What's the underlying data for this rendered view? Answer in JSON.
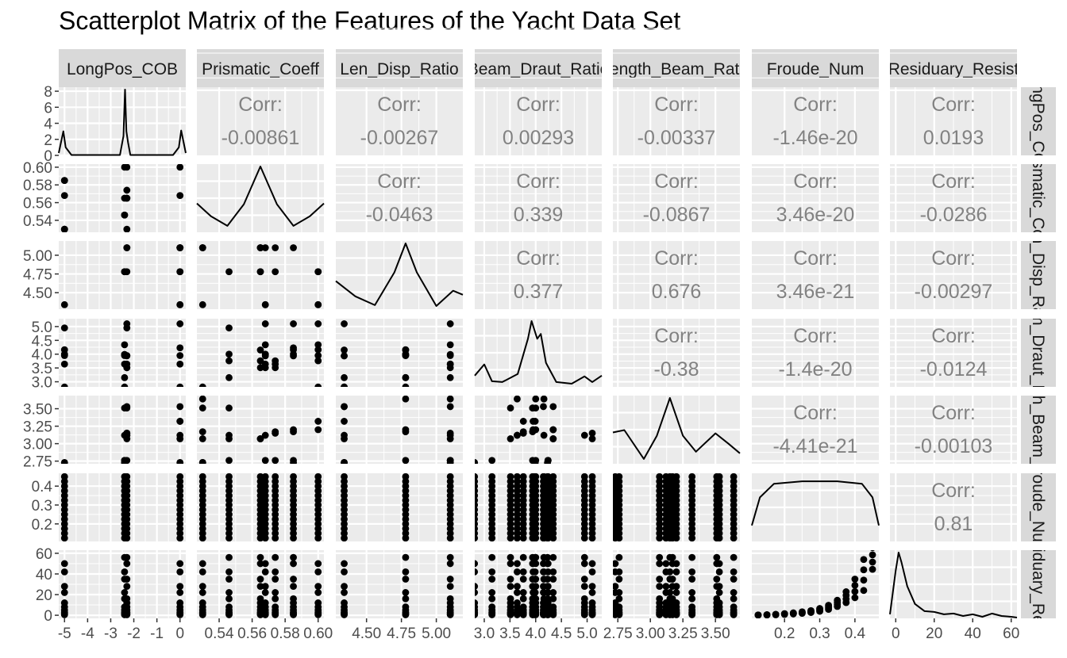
{
  "chart_data": {
    "type": "scatter",
    "title": "Scatterplot Matrix of the Features of the Yacht Data Set",
    "variables": [
      "LongPos_COB",
      "Prismatic_Coeff",
      "Len_Disp_Ratio",
      "Beam_Draut_Ratio",
      "Length_Beam_Ratio",
      "Froude_Num",
      "Residuary_Resist"
    ],
    "column_strip_labels": [
      "LongPos_COB",
      "Prismatic_Coeff",
      "Len_Disp_Ratio",
      "Beam_Draut_Ratio",
      "Length_Beam_Ratio",
      "Froude_Num",
      "Residuary_Resist"
    ],
    "row_strip_labels": [
      "LongPos_COB",
      "Prismatic_Coeff",
      "Len_Disp_Ratio",
      "Beam_Draut_Ratio",
      "Length_Beam_Ratio",
      "Froude_Num",
      "Residuary_Resist"
    ],
    "corr_label": "Corr:",
    "correlations": [
      {
        "row": 0,
        "col": 1,
        "text": "-0.00861"
      },
      {
        "row": 0,
        "col": 2,
        "text": "-0.00267"
      },
      {
        "row": 0,
        "col": 3,
        "text": "0.00293"
      },
      {
        "row": 0,
        "col": 4,
        "text": "-0.00337"
      },
      {
        "row": 0,
        "col": 5,
        "text": "-1.46e-20"
      },
      {
        "row": 0,
        "col": 6,
        "text": "0.0193"
      },
      {
        "row": 1,
        "col": 2,
        "text": "-0.0463"
      },
      {
        "row": 1,
        "col": 3,
        "text": "0.339"
      },
      {
        "row": 1,
        "col": 4,
        "text": "-0.0867"
      },
      {
        "row": 1,
        "col": 5,
        "text": "3.46e-20"
      },
      {
        "row": 1,
        "col": 6,
        "text": "-0.0286"
      },
      {
        "row": 2,
        "col": 3,
        "text": "0.377"
      },
      {
        "row": 2,
        "col": 4,
        "text": "0.676"
      },
      {
        "row": 2,
        "col": 5,
        "text": "3.46e-21"
      },
      {
        "row": 2,
        "col": 6,
        "text": "-0.00297"
      },
      {
        "row": 3,
        "col": 4,
        "text": "-0.38"
      },
      {
        "row": 3,
        "col": 5,
        "text": "-1.4e-20"
      },
      {
        "row": 3,
        "col": 6,
        "text": "-0.0124"
      },
      {
        "row": 4,
        "col": 5,
        "text": "-4.41e-21"
      },
      {
        "row": 4,
        "col": 6,
        "text": "-0.00103"
      },
      {
        "row": 5,
        "col": 6,
        "text": "0.81"
      }
    ],
    "x_ticks": [
      {
        "values": [
          -5,
          -4,
          -3,
          -2,
          -1,
          0
        ],
        "labels": [
          "-5",
          "-4",
          "-3",
          "-2",
          "-1",
          "0"
        ]
      },
      {
        "values": [
          0.54,
          0.56,
          0.58,
          0.6
        ],
        "labels": [
          "0.54",
          "0.56",
          "0.58",
          "0.60"
        ]
      },
      {
        "values": [
          4.5,
          4.75,
          5.0
        ],
        "labels": [
          "4.50",
          "4.75",
          "5.00"
        ]
      },
      {
        "values": [
          3.0,
          3.5,
          4.0,
          4.5,
          5.0
        ],
        "labels": [
          "3.0",
          "3.5",
          "4.0",
          "4.5",
          "5.0"
        ]
      },
      {
        "values": [
          2.75,
          3.0,
          3.25,
          3.5
        ],
        "labels": [
          "2.75",
          "3.00",
          "3.25",
          "3.50"
        ]
      },
      {
        "values": [
          0.2,
          0.3,
          0.4
        ],
        "labels": [
          "0.2",
          "0.3",
          "0.4"
        ]
      },
      {
        "values": [
          0,
          20,
          40,
          60
        ],
        "labels": [
          "0",
          "20",
          "40",
          "60"
        ]
      }
    ],
    "y_ticks": [
      {
        "values": [
          0,
          2,
          4,
          6,
          8
        ],
        "labels": [
          "0",
          "2",
          "4",
          "6",
          "8"
        ]
      },
      {
        "values": [
          0.54,
          0.56,
          0.58,
          0.6
        ],
        "labels": [
          "0.54",
          "0.56",
          "0.58",
          "0.60"
        ]
      },
      {
        "values": [
          4.5,
          4.75,
          5.0
        ],
        "labels": [
          "4.50",
          "4.75",
          "5.00"
        ]
      },
      {
        "values": [
          3.0,
          3.5,
          4.0,
          4.5,
          5.0
        ],
        "labels": [
          "3.0",
          "3.5",
          "4.0",
          "4.5",
          "5.0"
        ]
      },
      {
        "values": [
          2.75,
          3.0,
          3.25,
          3.5
        ],
        "labels": [
          "2.75",
          "3.00",
          "3.25",
          "3.50"
        ]
      },
      {
        "values": [
          0.2,
          0.3,
          0.4
        ],
        "labels": [
          "0.2",
          "0.3",
          "0.4"
        ]
      },
      {
        "values": [
          0,
          20,
          40,
          60
        ],
        "labels": [
          "0",
          "20",
          "40",
          "60"
        ]
      }
    ],
    "ranges": [
      [
        -5.25,
        0.25
      ],
      [
        0.5265,
        0.6035
      ],
      [
        4.28,
        5.19
      ],
      [
        2.815,
        5.285
      ],
      [
        2.712,
        3.688
      ],
      [
        0.107,
        0.468
      ],
      [
        -3,
        63
      ]
    ],
    "density_ylim": [
      0,
      8.5
    ],
    "levels": [
      [
        -5.0,
        -2.4,
        -2.3,
        0.0
      ],
      [
        0.53,
        0.546,
        0.565,
        0.568,
        0.574,
        0.585,
        0.6
      ],
      [
        4.34,
        4.78,
        5.1
      ],
      [
        2.81,
        3.15,
        3.51,
        3.64,
        3.76,
        3.94,
        3.95,
        3.99,
        4.0,
        4.15,
        4.16,
        4.23,
        4.24,
        4.34,
        4.95,
        5.1
      ],
      [
        2.73,
        2.76,
        3.07,
        3.12,
        3.15,
        3.17,
        3.2,
        3.32,
        3.51,
        3.53,
        3.64
      ],
      [
        0.125,
        0.15,
        0.175,
        0.2,
        0.225,
        0.25,
        0.275,
        0.3,
        0.325,
        0.35,
        0.375,
        0.4,
        0.425,
        0.45
      ],
      []
    ],
    "density_curves": [
      {
        "x": [
          -5.25,
          -5.05,
          -4.95,
          -4.7,
          -2.6,
          -2.45,
          -2.38,
          -2.32,
          -2.25,
          -2.15,
          -0.3,
          -0.05,
          0.05,
          0.25
        ],
        "y": [
          0.3,
          3.0,
          1.0,
          0.05,
          0.05,
          2.4,
          8.2,
          3.0,
          1.6,
          0.05,
          0.05,
          1.0,
          3.1,
          0.3
        ]
      },
      {
        "x": [
          0.5265,
          0.535,
          0.545,
          0.555,
          0.565,
          0.575,
          0.585,
          0.595,
          0.6035
        ],
        "y": [
          3.6,
          2.0,
          0.8,
          3.5,
          8.2,
          3.5,
          0.8,
          2.0,
          3.6
        ]
      },
      {
        "x": [
          4.28,
          4.42,
          4.56,
          4.7,
          4.78,
          4.86,
          5.0,
          5.12,
          5.19
        ],
        "y": [
          3.5,
          1.6,
          0.5,
          4.6,
          8.2,
          4.6,
          0.4,
          2.3,
          1.8
        ]
      },
      {
        "x": [
          2.815,
          3.0,
          3.15,
          3.35,
          3.65,
          3.85,
          3.92,
          4.03,
          4.1,
          4.2,
          4.4,
          4.7,
          4.95,
          5.1,
          5.285
        ],
        "y": [
          1.4,
          2.8,
          0.7,
          0.6,
          1.6,
          6.0,
          8.2,
          6.0,
          6.6,
          3.0,
          0.6,
          0.4,
          1.3,
          0.6,
          1.4
        ]
      },
      {
        "x": [
          2.712,
          2.8,
          2.95,
          3.05,
          3.15,
          3.25,
          3.35,
          3.5,
          3.6,
          3.688
        ],
        "y": [
          3.9,
          4.2,
          0.6,
          3.5,
          8.2,
          3.5,
          1.5,
          3.8,
          2.5,
          1.3
        ]
      },
      {
        "x": [
          0.107,
          0.13,
          0.17,
          0.25,
          0.35,
          0.42,
          0.45,
          0.468
        ],
        "y": [
          2.0,
          5.5,
          7.2,
          7.5,
          7.5,
          7.2,
          5.5,
          2.0
        ]
      },
      {
        "x": [
          -3,
          0,
          1.5,
          3,
          6,
          10,
          15,
          20,
          25,
          30,
          35,
          40,
          45,
          50,
          55,
          60,
          63
        ],
        "y": [
          0.5,
          6.0,
          8.2,
          7.0,
          4.0,
          1.8,
          0.9,
          0.8,
          0.5,
          0.6,
          0.3,
          0.5,
          0.2,
          0.6,
          0.3,
          0.2,
          0.1
        ]
      }
    ],
    "froude_vs_resist": {
      "x": [
        0.125,
        0.15,
        0.175,
        0.2,
        0.225,
        0.25,
        0.275,
        0.3,
        0.325,
        0.35,
        0.375,
        0.4,
        0.425,
        0.45
      ],
      "y": [
        0.2,
        0.4,
        0.7,
        1.2,
        1.8,
        2.6,
        3.6,
        5.2,
        7.7,
        11.5,
        17.5,
        26.0,
        39.0,
        55.0
      ]
    },
    "froude_vs_resist_spread": [
      0.05,
      0.1,
      0.15,
      0.25,
      0.35,
      0.5,
      0.6,
      0.9,
      1.3,
      2.0,
      3.5,
      6.0,
      10.0,
      7.0
    ],
    "colors": {
      "panel": "#ebebeb",
      "strip": "#d9d9d9",
      "grid": "#ffffff",
      "point": "#000000",
      "corr_text": "#828282",
      "axis_text": "#4d4d4d"
    }
  }
}
